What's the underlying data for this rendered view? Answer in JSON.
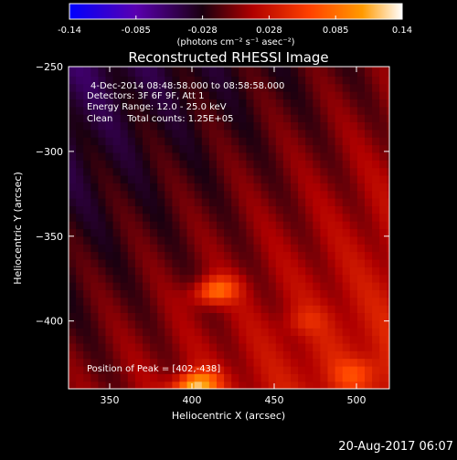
{
  "colors": {
    "background": "#000000",
    "foreground": "#ffffff",
    "colormap": [
      "#0000ff",
      "#5a00b0",
      "#000000",
      "#c00000",
      "#ff4000",
      "#ff9a00",
      "#ffffff"
    ]
  },
  "colorbar": {
    "ticks": [
      "-0.14",
      "-0.085",
      "-0.028",
      "0.028",
      "0.085",
      "0.14"
    ],
    "units": "(photons cm⁻² s⁻¹ asec⁻²)"
  },
  "chart_data": {
    "type": "heatmap",
    "title": "Reconstructed RHESSI Image",
    "xlabel": "Heliocentric X (arcsec)",
    "ylabel": "Heliocentric Y (arcsec)",
    "xlim": [
      325,
      520
    ],
    "ylim": [
      -440,
      -250
    ],
    "x_ticks": [
      350,
      400,
      450,
      500
    ],
    "y_ticks": [
      -250,
      -300,
      -350,
      -400
    ],
    "value_range": [
      -0.14,
      0.14
    ],
    "peak": [
      402,
      -438
    ],
    "bright_spots": [
      {
        "x": 414,
        "y": -382,
        "value": 0.11
      },
      {
        "x": 402,
        "y": -438,
        "value": 0.14
      },
      {
        "x": 468,
        "y": -400,
        "value": 0.05
      },
      {
        "x": 500,
        "y": -430,
        "value": 0.06
      }
    ]
  },
  "annotations": {
    "time_range": "4-Dec-2014 08:48:58.000 to 08:58:58.000",
    "detectors": "Detectors: 3F 6F 9F, Att 1",
    "energy": "Energy Range: 12.0 - 25.0 keV",
    "clean": "Clean     Total counts: 1.25E+05",
    "peak_label": "Position of Peak = [402,-438]"
  },
  "footer": {
    "date": "20-Aug-2017 06:07"
  }
}
